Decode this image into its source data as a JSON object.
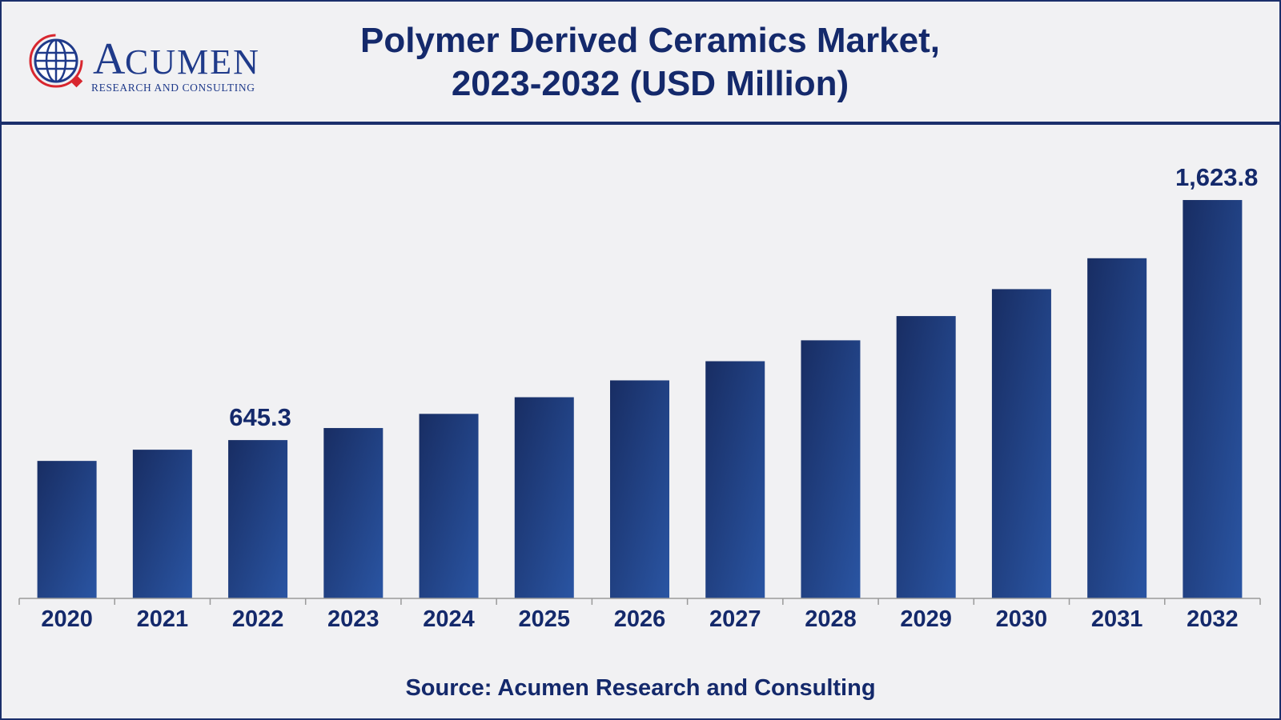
{
  "header": {
    "title_line1": "Polymer Derived Ceramics Market,",
    "title_line2": "2023-2032 (USD Million)"
  },
  "logo": {
    "word": "Acumen",
    "subtitle": "RESEARCH AND CONSULTING",
    "icon": "globe-icon"
  },
  "footer": {
    "source": "Source: Acumen Research and Consulting"
  },
  "colors": {
    "bar_dark": "#182d63",
    "bar_light": "#2a55a3",
    "text": "#14296b",
    "border": "#1b2f6b",
    "background": "#f1f1f3"
  },
  "chart_data": {
    "type": "bar",
    "categories": [
      "2020",
      "2021",
      "2022",
      "2023",
      "2024",
      "2025",
      "2026",
      "2027",
      "2028",
      "2029",
      "2030",
      "2031",
      "2032"
    ],
    "values": [
      560.4,
      606.1,
      645.3,
      694.4,
      752.2,
      820.0,
      888.7,
      966.8,
      1052.0,
      1150.8,
      1260.6,
      1386.5,
      1623.8
    ],
    "data_labels": [
      {
        "index": 2,
        "text": "645.3"
      },
      {
        "index": 12,
        "text": "1,623.8"
      }
    ],
    "title": "Polymer Derived Ceramics Market, 2023-2032 (USD Million)",
    "xlabel": "",
    "ylabel": "",
    "ylim": [
      0,
      1650
    ],
    "grid": false,
    "legend": "none"
  }
}
